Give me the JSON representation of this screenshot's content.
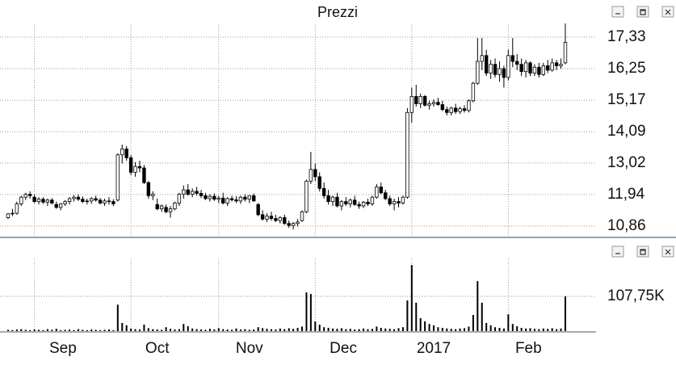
{
  "chart_data": [
    {
      "type": "candlestick",
      "title": "Prezzi",
      "up_color": "#ffffff",
      "down_color": "#000000",
      "line_color": "#000000",
      "xlim": [
        -1.84,
        134
      ],
      "xgrid": [
        6,
        28,
        48,
        70,
        92,
        114
      ],
      "ylim": [
        10.5,
        17.85
      ],
      "yticks": [
        {
          "value": 17.33,
          "label": "17,33"
        },
        {
          "value": 16.25,
          "label": "16,25"
        },
        {
          "value": 15.17,
          "label": "15,17"
        },
        {
          "value": 14.09,
          "label": "14,09"
        },
        {
          "value": 13.02,
          "label": "13,02"
        },
        {
          "value": 11.94,
          "label": "11,94"
        },
        {
          "value": 10.86,
          "label": "10,86"
        }
      ],
      "ohlc": [
        [
          11.15,
          11.3,
          11.1,
          11.28
        ],
        [
          11.28,
          11.45,
          11.2,
          11.3
        ],
        [
          11.3,
          11.7,
          11.25,
          11.62
        ],
        [
          11.62,
          11.9,
          11.55,
          11.85
        ],
        [
          11.85,
          12.0,
          11.75,
          11.95
        ],
        [
          11.95,
          12.05,
          11.8,
          11.9
        ],
        [
          11.85,
          11.95,
          11.65,
          11.7
        ],
        [
          11.7,
          11.85,
          11.6,
          11.78
        ],
        [
          11.78,
          11.85,
          11.62,
          11.68
        ],
        [
          11.68,
          11.8,
          11.55,
          11.75
        ],
        [
          11.75,
          11.82,
          11.6,
          11.65
        ],
        [
          11.6,
          11.7,
          11.45,
          11.5
        ],
        [
          11.5,
          11.65,
          11.4,
          11.62
        ],
        [
          11.62,
          11.75,
          11.55,
          11.7
        ],
        [
          11.7,
          11.85,
          11.6,
          11.8
        ],
        [
          11.8,
          11.92,
          11.7,
          11.85
        ],
        [
          11.85,
          11.95,
          11.72,
          11.78
        ],
        [
          11.78,
          11.88,
          11.65,
          11.7
        ],
        [
          11.7,
          11.8,
          11.6,
          11.72
        ],
        [
          11.72,
          11.85,
          11.62,
          11.8
        ],
        [
          11.8,
          11.9,
          11.7,
          11.75
        ],
        [
          11.75,
          11.82,
          11.6,
          11.65
        ],
        [
          11.65,
          11.8,
          11.55,
          11.72
        ],
        [
          11.72,
          11.85,
          11.6,
          11.7
        ],
        [
          11.7,
          11.78,
          11.55,
          11.62
        ],
        [
          11.75,
          13.35,
          11.7,
          13.3
        ],
        [
          13.3,
          13.65,
          13.0,
          13.5
        ],
        [
          13.5,
          13.6,
          13.1,
          13.2
        ],
        [
          13.2,
          13.3,
          12.6,
          12.7
        ],
        [
          12.7,
          13.05,
          12.55,
          12.9
        ],
        [
          12.9,
          13.1,
          12.7,
          12.85
        ],
        [
          12.85,
          12.95,
          12.3,
          12.35
        ],
        [
          12.35,
          12.4,
          11.8,
          11.9
        ],
        [
          11.9,
          12.05,
          11.75,
          11.95
        ],
        [
          11.6,
          11.8,
          11.4,
          11.45
        ],
        [
          11.45,
          11.6,
          11.35,
          11.55
        ],
        [
          11.5,
          11.6,
          11.3,
          11.35
        ],
        [
          11.35,
          11.55,
          11.15,
          11.45
        ],
        [
          11.45,
          11.7,
          11.4,
          11.65
        ],
        [
          11.65,
          12.0,
          11.55,
          11.95
        ],
        [
          11.95,
          12.25,
          11.8,
          12.1
        ],
        [
          12.1,
          12.3,
          11.9,
          11.95
        ],
        [
          11.95,
          12.15,
          11.85,
          12.05
        ],
        [
          12.05,
          12.2,
          11.9,
          11.98
        ],
        [
          11.98,
          12.1,
          11.82,
          11.9
        ],
        [
          11.9,
          12.0,
          11.75,
          11.8
        ],
        [
          11.8,
          11.95,
          11.7,
          11.88
        ],
        [
          11.88,
          11.98,
          11.72,
          11.78
        ],
        [
          11.78,
          11.9,
          11.65,
          11.82
        ],
        [
          11.82,
          12.0,
          11.6,
          11.65
        ],
        [
          11.65,
          11.85,
          11.55,
          11.8
        ],
        [
          11.8,
          11.9,
          11.7,
          11.76
        ],
        [
          11.76,
          11.88,
          11.65,
          11.72
        ],
        [
          11.72,
          11.9,
          11.62,
          11.85
        ],
        [
          11.85,
          11.95,
          11.7,
          11.78
        ],
        [
          11.78,
          11.92,
          11.65,
          11.9
        ],
        [
          11.9,
          11.98,
          11.7,
          11.72
        ],
        [
          11.6,
          11.65,
          11.2,
          11.25
        ],
        [
          11.25,
          11.4,
          11.05,
          11.1
        ],
        [
          11.1,
          11.3,
          11.0,
          11.2
        ],
        [
          11.2,
          11.35,
          11.05,
          11.12
        ],
        [
          11.12,
          11.25,
          11.0,
          11.05
        ],
        [
          11.05,
          11.2,
          10.95,
          11.15
        ],
        [
          11.15,
          11.25,
          10.9,
          10.95
        ],
        [
          10.95,
          11.05,
          10.8,
          10.88
        ],
        [
          10.88,
          11.0,
          10.75,
          10.95
        ],
        [
          10.95,
          11.1,
          10.85,
          11.0
        ],
        [
          11.05,
          11.4,
          11.0,
          11.35
        ],
        [
          11.35,
          12.45,
          11.3,
          12.4
        ],
        [
          12.4,
          13.4,
          12.3,
          12.8
        ],
        [
          12.8,
          13.0,
          12.4,
          12.55
        ],
        [
          12.55,
          12.7,
          12.05,
          12.15
        ],
        [
          12.15,
          12.35,
          11.8,
          11.9
        ],
        [
          11.9,
          12.1,
          11.6,
          11.7
        ],
        [
          11.7,
          11.9,
          11.55,
          11.85
        ],
        [
          11.85,
          12.0,
          11.5,
          11.55
        ],
        [
          11.55,
          11.75,
          11.4,
          11.7
        ],
        [
          11.7,
          11.85,
          11.55,
          11.62
        ],
        [
          11.62,
          11.8,
          11.5,
          11.75
        ],
        [
          11.75,
          11.9,
          11.55,
          11.6
        ],
        [
          11.6,
          11.7,
          11.45,
          11.55
        ],
        [
          11.55,
          11.72,
          11.48,
          11.68
        ],
        [
          11.68,
          11.8,
          11.55,
          11.62
        ],
        [
          11.62,
          11.9,
          11.55,
          11.85
        ],
        [
          11.85,
          12.3,
          11.8,
          12.2
        ],
        [
          12.2,
          12.35,
          11.95,
          12.0
        ],
        [
          12.0,
          12.1,
          11.75,
          11.8
        ],
        [
          11.8,
          11.9,
          11.55,
          11.62
        ],
        [
          11.62,
          11.8,
          11.4,
          11.7
        ],
        [
          11.7,
          11.85,
          11.5,
          11.65
        ],
        [
          11.65,
          11.9,
          11.6,
          11.85
        ],
        [
          11.85,
          14.9,
          11.8,
          14.75
        ],
        [
          14.75,
          15.6,
          14.4,
          15.3
        ],
        [
          15.3,
          15.7,
          14.95,
          15.05
        ],
        [
          15.05,
          15.4,
          14.9,
          15.3
        ],
        [
          15.3,
          15.35,
          14.95,
          15.0
        ],
        [
          15.0,
          15.15,
          14.85,
          15.05
        ],
        [
          15.05,
          15.2,
          14.95,
          15.1
        ],
        [
          15.1,
          15.25,
          14.98,
          15.02
        ],
        [
          15.02,
          15.15,
          14.8,
          14.85
        ],
        [
          14.85,
          14.95,
          14.65,
          14.75
        ],
        [
          14.75,
          14.95,
          14.65,
          14.9
        ],
        [
          14.9,
          15.05,
          14.7,
          14.78
        ],
        [
          14.78,
          14.95,
          14.7,
          14.88
        ],
        [
          14.88,
          15.0,
          14.75,
          14.82
        ],
        [
          14.82,
          15.2,
          14.75,
          15.15
        ],
        [
          15.15,
          15.8,
          15.1,
          15.75
        ],
        [
          15.75,
          17.3,
          15.7,
          16.5
        ],
        [
          16.5,
          17.3,
          16.2,
          16.7
        ],
        [
          16.7,
          16.9,
          16.0,
          16.1
        ],
        [
          16.1,
          16.55,
          15.9,
          16.4
        ],
        [
          16.4,
          16.6,
          15.95,
          16.05
        ],
        [
          16.05,
          16.5,
          15.8,
          16.25
        ],
        [
          16.25,
          16.35,
          15.6,
          15.95
        ],
        [
          15.95,
          16.9,
          15.85,
          16.7
        ],
        [
          16.7,
          17.3,
          16.3,
          16.5
        ],
        [
          16.5,
          16.75,
          16.2,
          16.4
        ],
        [
          16.4,
          16.6,
          16.0,
          16.15
        ],
        [
          16.15,
          16.55,
          15.95,
          16.45
        ],
        [
          16.45,
          16.5,
          16.0,
          16.1
        ],
        [
          16.1,
          16.4,
          16.0,
          16.3
        ],
        [
          16.3,
          16.45,
          15.95,
          16.05
        ],
        [
          16.05,
          16.45,
          16.0,
          16.35
        ],
        [
          16.35,
          16.55,
          16.1,
          16.2
        ],
        [
          16.2,
          16.6,
          16.15,
          16.45
        ],
        [
          16.45,
          16.55,
          16.2,
          16.35
        ],
        [
          16.35,
          16.6,
          16.25,
          16.4
        ],
        [
          16.45,
          17.8,
          16.4,
          17.15
        ]
      ]
    },
    {
      "type": "bar",
      "color": "#000000",
      "xlim": [
        -1.84,
        134
      ],
      "xgrid": [
        6,
        28,
        48,
        70,
        92,
        114
      ],
      "ylim": [
        0,
        213000
      ],
      "yticks": [
        {
          "value": 107750,
          "label": "107,75K"
        }
      ],
      "xticks": [
        {
          "value": 12.5,
          "label": "Sep"
        },
        {
          "value": 34,
          "label": "Oct"
        },
        {
          "value": 55,
          "label": "Nov"
        },
        {
          "value": 76.4,
          "label": "Dec"
        },
        {
          "value": 97,
          "label": "2017"
        },
        {
          "value": 118.6,
          "label": "Feb"
        }
      ],
      "values": [
        4000,
        3000,
        5000,
        6000,
        4000,
        3000,
        5000,
        4000,
        3000,
        6000,
        4000,
        7000,
        3000,
        4000,
        5000,
        3000,
        6000,
        4000,
        3000,
        5000,
        4000,
        3000,
        4000,
        5000,
        3000,
        82000,
        25000,
        18000,
        8000,
        6000,
        5000,
        20000,
        9000,
        6000,
        5000,
        4000,
        12000,
        7000,
        5000,
        6000,
        22000,
        15000,
        8000,
        6000,
        5000,
        4000,
        7000,
        5000,
        9000,
        6000,
        5000,
        4000,
        8000,
        5000,
        6000,
        4000,
        5000,
        12000,
        9000,
        7000,
        6000,
        5000,
        8000,
        6000,
        9000,
        7000,
        10000,
        14000,
        120000,
        115000,
        30000,
        20000,
        12000,
        10000,
        8000,
        7000,
        9000,
        6000,
        7000,
        5000,
        6000,
        8000,
        6000,
        7000,
        14000,
        10000,
        8000,
        7000,
        6000,
        9000,
        12000,
        95000,
        205000,
        88000,
        40000,
        30000,
        22000,
        18000,
        12000,
        10000,
        8000,
        7000,
        6000,
        8000,
        9000,
        14000,
        50000,
        155000,
        88000,
        25000,
        18000,
        12000,
        10000,
        8000,
        52000,
        22000,
        15000,
        10000,
        8000,
        9000,
        7000,
        6000,
        8000,
        7000,
        9000,
        6000,
        8000,
        107750
      ]
    }
  ]
}
